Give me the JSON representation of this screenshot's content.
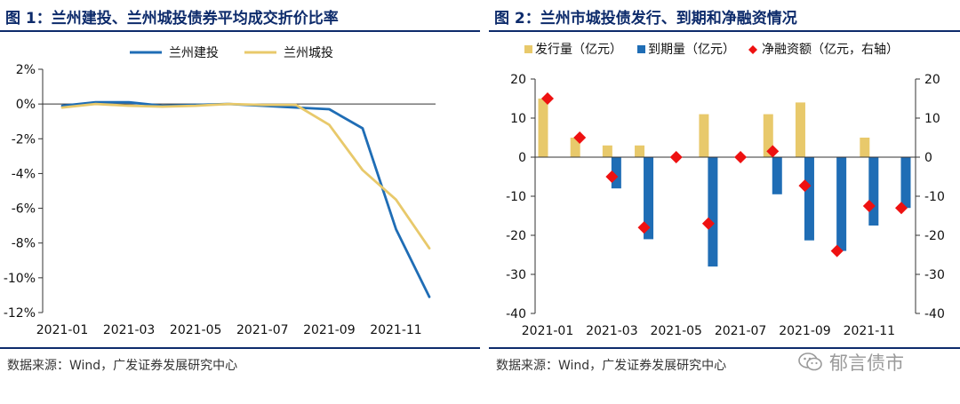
{
  "panels": {
    "left": {
      "title": "图 1：兰州建投、兰州城投债券平均成交折价比率",
      "source": "数据来源：Wind，广发证券发展研究中心"
    },
    "right": {
      "title": "图 2：兰州市城投债发行、到期和净融资情况",
      "source": "数据来源：Wind，广发证券发展研究中心"
    }
  },
  "watermark": {
    "text": "郁言债市"
  },
  "colors": {
    "navy": "#0d2b6b",
    "blue": "#1f6db5",
    "gold": "#e8c96b",
    "red": "#ee1111"
  },
  "chart_data": [
    {
      "type": "line",
      "title": "兰州建投、兰州城投债券平均成交折价比率",
      "x": [
        "2021-01",
        "2021-02",
        "2021-03",
        "2021-04",
        "2021-05",
        "2021-06",
        "2021-07",
        "2021-08",
        "2021-09",
        "2021-10",
        "2021-11",
        "2021-12"
      ],
      "xticks": [
        "2021-01",
        "2021-03",
        "2021-05",
        "2021-07",
        "2021-09",
        "2021-11"
      ],
      "yticks": [
        2,
        0,
        -2,
        -4,
        -6,
        -8,
        -10,
        -12
      ],
      "ytick_labels": [
        "2%",
        "0%",
        "-2%",
        "-4%",
        "-6%",
        "-8%",
        "-10%",
        "-12%"
      ],
      "ylim": [
        -12,
        2
      ],
      "series": [
        {
          "name": "兰州建投",
          "color": "#1f6db5",
          "values": [
            -0.1,
            0.1,
            0.1,
            -0.1,
            -0.05,
            0.0,
            -0.1,
            -0.2,
            -0.3,
            -1.4,
            -7.2,
            -11.1
          ]
        },
        {
          "name": "兰州城投",
          "color": "#e8c96b",
          "values": [
            -0.2,
            0.0,
            -0.1,
            -0.15,
            -0.1,
            0.0,
            -0.05,
            -0.05,
            -1.2,
            -3.8,
            -5.5,
            -8.3
          ]
        }
      ],
      "legend": "top-center"
    },
    {
      "type": "bar",
      "title": "兰州市城投债发行、到期和净融资情况",
      "categories": [
        "2021-01",
        "2021-02",
        "2021-03",
        "2021-04",
        "2021-05",
        "2021-06",
        "2021-07",
        "2021-08",
        "2021-09",
        "2021-10",
        "2021-11",
        "2021-12"
      ],
      "xticks": [
        "2021-01",
        "2021-03",
        "2021-05",
        "2021-07",
        "2021-09",
        "2021-11"
      ],
      "yticks": [
        20,
        10,
        0,
        -10,
        -20,
        -30,
        -40
      ],
      "ylim": [
        -40,
        20
      ],
      "y2lim": [
        -40,
        20
      ],
      "series": [
        {
          "name": "发行量（亿元）",
          "kind": "bar",
          "color": "#e8c96b",
          "values": [
            15,
            5,
            3,
            3,
            0,
            11,
            0,
            11,
            14,
            0,
            5,
            0
          ]
        },
        {
          "name": "到期量（亿元）",
          "kind": "bar",
          "color": "#1f6db5",
          "values": [
            0,
            0,
            -8,
            -21,
            0,
            -28,
            0,
            -9.5,
            -21.3,
            -24,
            -17.5,
            -13
          ]
        },
        {
          "name": "净融资额（亿元，右轴）",
          "kind": "marker",
          "color": "#ee1111",
          "axis": "right",
          "values": [
            15,
            5,
            -5,
            -18,
            0,
            -17,
            0,
            1.5,
            -7.3,
            -24,
            -12.5,
            -13
          ]
        }
      ],
      "legend": "top"
    }
  ]
}
